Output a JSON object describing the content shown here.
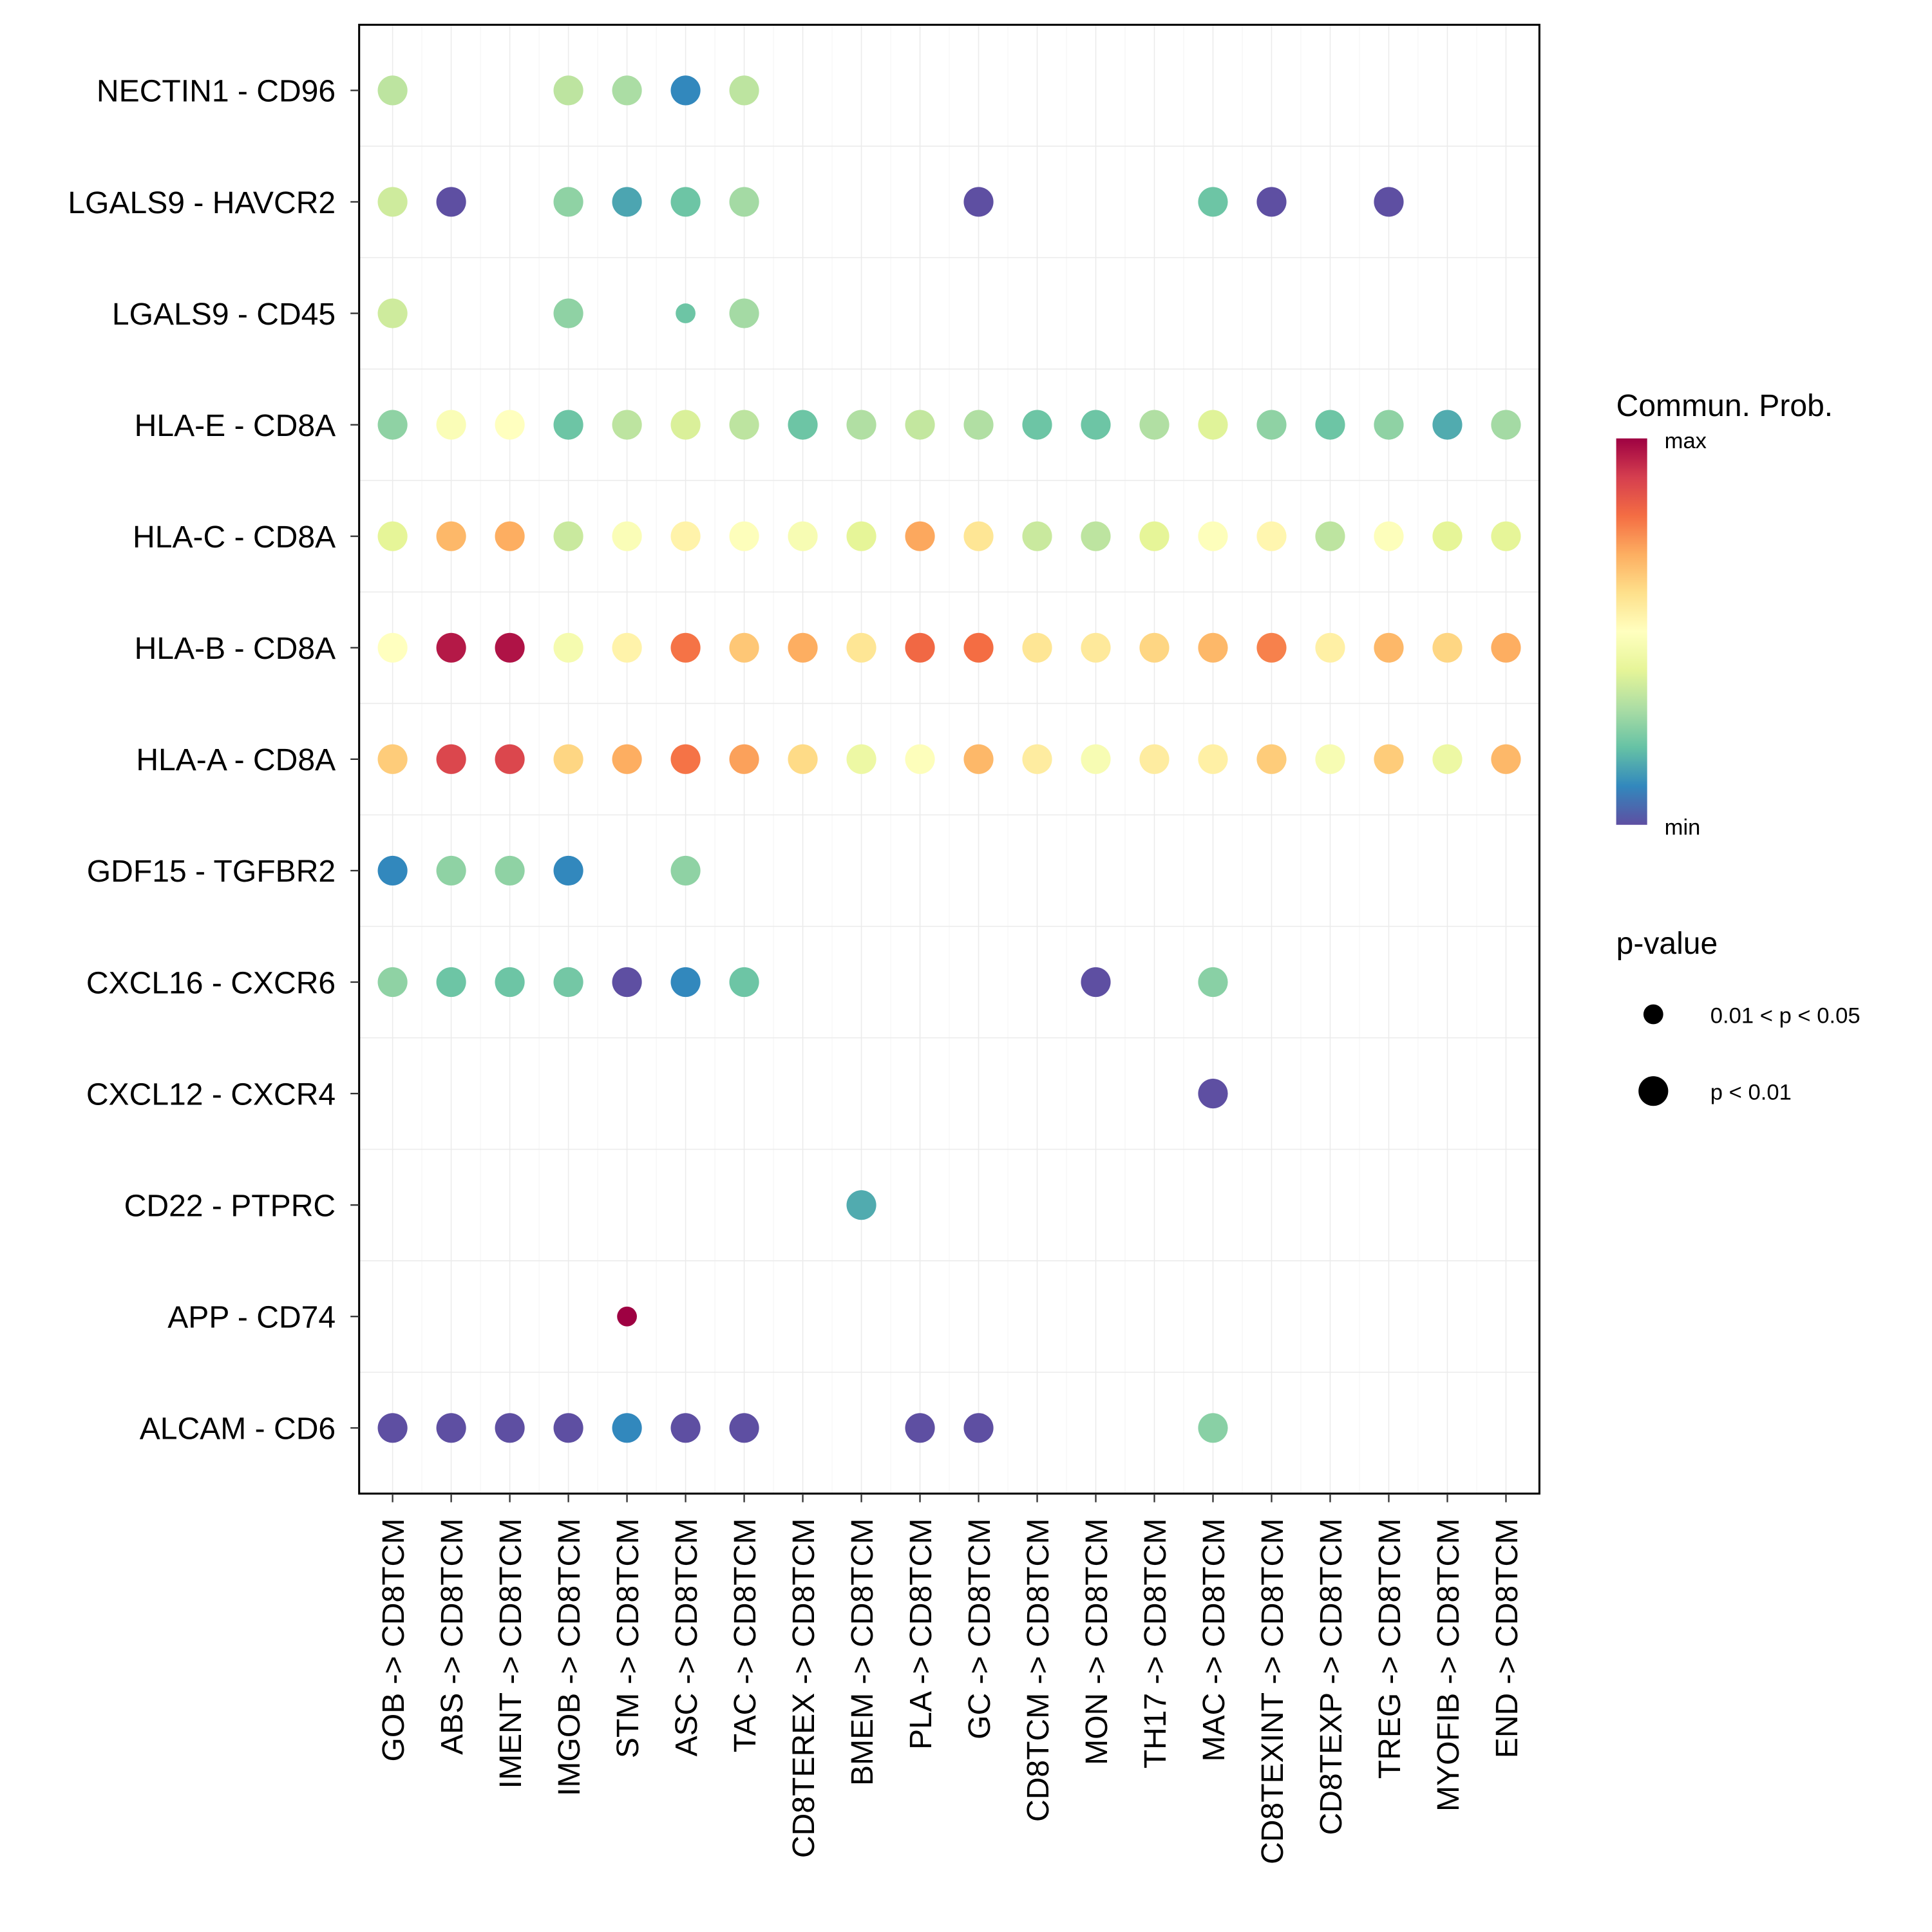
{
  "chart_data": {
    "type": "scatter",
    "subtype": "dot-plot",
    "title": "",
    "xlabel": "",
    "ylabel": "",
    "x_categories": [
      "GOB -> CD8TCM",
      "ABS -> CD8TCM",
      "IMENT -> CD8TCM",
      "IMGOB -> CD8TCM",
      "STM -> CD8TCM",
      "ASC -> CD8TCM",
      "TAC -> CD8TCM",
      "CD8TEREX -> CD8TCM",
      "BMEM -> CD8TCM",
      "PLA -> CD8TCM",
      "GC -> CD8TCM",
      "CD8TCM -> CD8TCM",
      "MON -> CD8TCM",
      "TH17 -> CD8TCM",
      "MAC -> CD8TCM",
      "CD8TEXINT -> CD8TCM",
      "CD8TEXP -> CD8TCM",
      "TREG -> CD8TCM",
      "MYOFIB -> CD8TCM",
      "END -> CD8TCM"
    ],
    "y_categories": [
      "NECTIN1 - CD96",
      "LGALS9 - HAVCR2",
      "LGALS9 - CD45",
      "HLA-E - CD8A",
      "HLA-C - CD8A",
      "HLA-B - CD8A",
      "HLA-A - CD8A",
      "GDF15 - TGFBR2",
      "CXCL16 - CXCR6",
      "CXCL12 - CXCR4",
      "CD22 - PTPRC",
      "APP - CD74",
      "ALCAM - CD6"
    ],
    "color_legend": {
      "title": "Commun. Prob.",
      "high_label": "max",
      "low_label": "min",
      "palette": [
        "#9E0142",
        "#D53E4F",
        "#F46D43",
        "#FDAE61",
        "#FEE08B",
        "#FFFFBF",
        "#E6F598",
        "#ABDDA4",
        "#66C2A5",
        "#3288BD",
        "#5E4FA2"
      ]
    },
    "size_legend": {
      "title": "p-value",
      "entries": [
        {
          "label": "0.01 < p < 0.05",
          "size": "small"
        },
        {
          "label": "p < 0.01",
          "size": "large"
        }
      ]
    },
    "value_scale": "normalized communication probability, 0 = min, 1 = max (estimated from color)",
    "points": [
      {
        "y": "NECTIN1 - CD96",
        "x": "GOB -> CD8TCM",
        "prob": 0.33,
        "p": "<0.01"
      },
      {
        "y": "NECTIN1 - CD96",
        "x": "IMGOB -> CD8TCM",
        "prob": 0.33,
        "p": "<0.01"
      },
      {
        "y": "NECTIN1 - CD96",
        "x": "STM -> CD8TCM",
        "prob": 0.3,
        "p": "<0.01"
      },
      {
        "y": "NECTIN1 - CD96",
        "x": "ASC -> CD8TCM",
        "prob": 0.1,
        "p": "<0.01"
      },
      {
        "y": "NECTIN1 - CD96",
        "x": "TAC -> CD8TCM",
        "prob": 0.33,
        "p": "<0.01"
      },
      {
        "y": "LGALS9 - HAVCR2",
        "x": "GOB -> CD8TCM",
        "prob": 0.36,
        "p": "<0.01"
      },
      {
        "y": "LGALS9 - HAVCR2",
        "x": "ABS -> CD8TCM",
        "prob": 0.0,
        "p": "<0.01"
      },
      {
        "y": "LGALS9 - HAVCR2",
        "x": "IMGOB -> CD8TCM",
        "prob": 0.26,
        "p": "<0.01"
      },
      {
        "y": "LGALS9 - HAVCR2",
        "x": "STM -> CD8TCM",
        "prob": 0.15,
        "p": "<0.01"
      },
      {
        "y": "LGALS9 - HAVCR2",
        "x": "ASC -> CD8TCM",
        "prob": 0.21,
        "p": "<0.01"
      },
      {
        "y": "LGALS9 - HAVCR2",
        "x": "TAC -> CD8TCM",
        "prob": 0.29,
        "p": "<0.01"
      },
      {
        "y": "LGALS9 - HAVCR2",
        "x": "GC -> CD8TCM",
        "prob": 0.0,
        "p": "<0.01"
      },
      {
        "y": "LGALS9 - HAVCR2",
        "x": "MAC -> CD8TCM",
        "prob": 0.21,
        "p": "<0.01"
      },
      {
        "y": "LGALS9 - HAVCR2",
        "x": "CD8TEXINT -> CD8TCM",
        "prob": 0.0,
        "p": "<0.01"
      },
      {
        "y": "LGALS9 - HAVCR2",
        "x": "TREG -> CD8TCM",
        "prob": 0.0,
        "p": "<0.01"
      },
      {
        "y": "LGALS9 - CD45",
        "x": "GOB -> CD8TCM",
        "prob": 0.36,
        "p": "<0.01"
      },
      {
        "y": "LGALS9 - CD45",
        "x": "IMGOB -> CD8TCM",
        "prob": 0.26,
        "p": "<0.01"
      },
      {
        "y": "LGALS9 - CD45",
        "x": "ASC -> CD8TCM",
        "prob": 0.21,
        "p": "0.01-0.05"
      },
      {
        "y": "LGALS9 - CD45",
        "x": "TAC -> CD8TCM",
        "prob": 0.29,
        "p": "<0.01"
      },
      {
        "y": "HLA-E - CD8A",
        "x": "GOB -> CD8TCM",
        "prob": 0.26,
        "p": "<0.01"
      },
      {
        "y": "HLA-E - CD8A",
        "x": "ABS -> CD8TCM",
        "prob": 0.48,
        "p": "<0.01"
      },
      {
        "y": "HLA-E - CD8A",
        "x": "IMENT -> CD8TCM",
        "prob": 0.5,
        "p": "<0.01"
      },
      {
        "y": "HLA-E - CD8A",
        "x": "IMGOB -> CD8TCM",
        "prob": 0.21,
        "p": "<0.01"
      },
      {
        "y": "HLA-E - CD8A",
        "x": "STM -> CD8TCM",
        "prob": 0.33,
        "p": "<0.01"
      },
      {
        "y": "HLA-E - CD8A",
        "x": "ASC -> CD8TCM",
        "prob": 0.38,
        "p": "<0.01"
      },
      {
        "y": "HLA-E - CD8A",
        "x": "TAC -> CD8TCM",
        "prob": 0.33,
        "p": "<0.01"
      },
      {
        "y": "HLA-E - CD8A",
        "x": "CD8TEREX -> CD8TCM",
        "prob": 0.21,
        "p": "<0.01"
      },
      {
        "y": "HLA-E - CD8A",
        "x": "BMEM -> CD8TCM",
        "prob": 0.31,
        "p": "<0.01"
      },
      {
        "y": "HLA-E - CD8A",
        "x": "PLA -> CD8TCM",
        "prob": 0.34,
        "p": "<0.01"
      },
      {
        "y": "HLA-E - CD8A",
        "x": "GC -> CD8TCM",
        "prob": 0.31,
        "p": "<0.01"
      },
      {
        "y": "HLA-E - CD8A",
        "x": "CD8TCM -> CD8TCM",
        "prob": 0.21,
        "p": "<0.01"
      },
      {
        "y": "HLA-E - CD8A",
        "x": "MON -> CD8TCM",
        "prob": 0.21,
        "p": "<0.01"
      },
      {
        "y": "HLA-E - CD8A",
        "x": "TH17 -> CD8TCM",
        "prob": 0.31,
        "p": "<0.01"
      },
      {
        "y": "HLA-E - CD8A",
        "x": "MAC -> CD8TCM",
        "prob": 0.39,
        "p": "<0.01"
      },
      {
        "y": "HLA-E - CD8A",
        "x": "CD8TEXINT -> CD8TCM",
        "prob": 0.26,
        "p": "<0.01"
      },
      {
        "y": "HLA-E - CD8A",
        "x": "CD8TEXP -> CD8TCM",
        "prob": 0.21,
        "p": "<0.01"
      },
      {
        "y": "HLA-E - CD8A",
        "x": "TREG -> CD8TCM",
        "prob": 0.26,
        "p": "<0.01"
      },
      {
        "y": "HLA-E - CD8A",
        "x": "MYOFIB -> CD8TCM",
        "prob": 0.16,
        "p": "<0.01"
      },
      {
        "y": "HLA-E - CD8A",
        "x": "END -> CD8TCM",
        "prob": 0.29,
        "p": "<0.01"
      },
      {
        "y": "HLA-C - CD8A",
        "x": "GOB -> CD8TCM",
        "prob": 0.4,
        "p": "<0.01"
      },
      {
        "y": "HLA-C - CD8A",
        "x": "ABS -> CD8TCM",
        "prob": 0.68,
        "p": "<0.01"
      },
      {
        "y": "HLA-C - CD8A",
        "x": "IMENT -> CD8TCM",
        "prob": 0.7,
        "p": "<0.01"
      },
      {
        "y": "HLA-C - CD8A",
        "x": "IMGOB -> CD8TCM",
        "prob": 0.35,
        "p": "<0.01"
      },
      {
        "y": "HLA-C - CD8A",
        "x": "STM -> CD8TCM",
        "prob": 0.48,
        "p": "<0.01"
      },
      {
        "y": "HLA-C - CD8A",
        "x": "ASC -> CD8TCM",
        "prob": 0.54,
        "p": "<0.01"
      },
      {
        "y": "HLA-C - CD8A",
        "x": "TAC -> CD8TCM",
        "prob": 0.49,
        "p": "<0.01"
      },
      {
        "y": "HLA-C - CD8A",
        "x": "CD8TEREX -> CD8TCM",
        "prob": 0.47,
        "p": "<0.01"
      },
      {
        "y": "HLA-C - CD8A",
        "x": "BMEM -> CD8TCM",
        "prob": 0.4,
        "p": "<0.01"
      },
      {
        "y": "HLA-C - CD8A",
        "x": "PLA -> CD8TCM",
        "prob": 0.71,
        "p": "<0.01"
      },
      {
        "y": "HLA-C - CD8A",
        "x": "GC -> CD8TCM",
        "prob": 0.58,
        "p": "<0.01"
      },
      {
        "y": "HLA-C - CD8A",
        "x": "CD8TCM -> CD8TCM",
        "prob": 0.35,
        "p": "<0.01"
      },
      {
        "y": "HLA-C - CD8A",
        "x": "MON -> CD8TCM",
        "prob": 0.33,
        "p": "<0.01"
      },
      {
        "y": "HLA-C - CD8A",
        "x": "TH17 -> CD8TCM",
        "prob": 0.4,
        "p": "<0.01"
      },
      {
        "y": "HLA-C - CD8A",
        "x": "MAC -> CD8TCM",
        "prob": 0.49,
        "p": "<0.01"
      },
      {
        "y": "HLA-C - CD8A",
        "x": "CD8TEXINT -> CD8TCM",
        "prob": 0.53,
        "p": "<0.01"
      },
      {
        "y": "HLA-C - CD8A",
        "x": "CD8TEXP -> CD8TCM",
        "prob": 0.33,
        "p": "<0.01"
      },
      {
        "y": "HLA-C - CD8A",
        "x": "TREG -> CD8TCM",
        "prob": 0.49,
        "p": "<0.01"
      },
      {
        "y": "HLA-C - CD8A",
        "x": "MYOFIB -> CD8TCM",
        "prob": 0.4,
        "p": "<0.01"
      },
      {
        "y": "HLA-C - CD8A",
        "x": "END -> CD8TCM",
        "prob": 0.4,
        "p": "<0.01"
      },
      {
        "y": "HLA-B - CD8A",
        "x": "GOB -> CD8TCM",
        "prob": 0.5,
        "p": "<0.01"
      },
      {
        "y": "HLA-B - CD8A",
        "x": "ABS -> CD8TCM",
        "prob": 0.96,
        "p": "<0.01"
      },
      {
        "y": "HLA-B - CD8A",
        "x": "IMENT -> CD8TCM",
        "prob": 0.97,
        "p": "<0.01"
      },
      {
        "y": "HLA-B - CD8A",
        "x": "IMGOB -> CD8TCM",
        "prob": 0.46,
        "p": "<0.01"
      },
      {
        "y": "HLA-B - CD8A",
        "x": "STM -> CD8TCM",
        "prob": 0.54,
        "p": "<0.01"
      },
      {
        "y": "HLA-B - CD8A",
        "x": "ASC -> CD8TCM",
        "prob": 0.79,
        "p": "<0.01"
      },
      {
        "y": "HLA-B - CD8A",
        "x": "TAC -> CD8TCM",
        "prob": 0.65,
        "p": "<0.01"
      },
      {
        "y": "HLA-B - CD8A",
        "x": "CD8TEREX -> CD8TCM",
        "prob": 0.7,
        "p": "<0.01"
      },
      {
        "y": "HLA-B - CD8A",
        "x": "BMEM -> CD8TCM",
        "prob": 0.58,
        "p": "<0.01"
      },
      {
        "y": "HLA-B - CD8A",
        "x": "PLA -> CD8TCM",
        "prob": 0.81,
        "p": "<0.01"
      },
      {
        "y": "HLA-B - CD8A",
        "x": "GC -> CD8TCM",
        "prob": 0.8,
        "p": "<0.01"
      },
      {
        "y": "HLA-B - CD8A",
        "x": "CD8TCM -> CD8TCM",
        "prob": 0.58,
        "p": "<0.01"
      },
      {
        "y": "HLA-B - CD8A",
        "x": "MON -> CD8TCM",
        "prob": 0.57,
        "p": "<0.01"
      },
      {
        "y": "HLA-B - CD8A",
        "x": "TH17 -> CD8TCM",
        "prob": 0.62,
        "p": "<0.01"
      },
      {
        "y": "HLA-B - CD8A",
        "x": "MAC -> CD8TCM",
        "prob": 0.68,
        "p": "<0.01"
      },
      {
        "y": "HLA-B - CD8A",
        "x": "CD8TEXINT -> CD8TCM",
        "prob": 0.77,
        "p": "<0.01"
      },
      {
        "y": "HLA-B - CD8A",
        "x": "CD8TEXP -> CD8TCM",
        "prob": 0.55,
        "p": "<0.01"
      },
      {
        "y": "HLA-B - CD8A",
        "x": "TREG -> CD8TCM",
        "prob": 0.68,
        "p": "<0.01"
      },
      {
        "y": "HLA-B - CD8A",
        "x": "MYOFIB -> CD8TCM",
        "prob": 0.62,
        "p": "<0.01"
      },
      {
        "y": "HLA-B - CD8A",
        "x": "END -> CD8TCM",
        "prob": 0.7,
        "p": "<0.01"
      },
      {
        "y": "HLA-A - CD8A",
        "x": "GOB -> CD8TCM",
        "prob": 0.64,
        "p": "<0.01"
      },
      {
        "y": "HLA-A - CD8A",
        "x": "ABS -> CD8TCM",
        "prob": 0.88,
        "p": "<0.01"
      },
      {
        "y": "HLA-A - CD8A",
        "x": "IMENT -> CD8TCM",
        "prob": 0.88,
        "p": "<0.01"
      },
      {
        "y": "HLA-A - CD8A",
        "x": "IMGOB -> CD8TCM",
        "prob": 0.62,
        "p": "<0.01"
      },
      {
        "y": "HLA-A - CD8A",
        "x": "STM -> CD8TCM",
        "prob": 0.7,
        "p": "<0.01"
      },
      {
        "y": "HLA-A - CD8A",
        "x": "ASC -> CD8TCM",
        "prob": 0.79,
        "p": "<0.01"
      },
      {
        "y": "HLA-A - CD8A",
        "x": "TAC -> CD8TCM",
        "prob": 0.72,
        "p": "<0.01"
      },
      {
        "y": "HLA-A - CD8A",
        "x": "CD8TEREX -> CD8TCM",
        "prob": 0.61,
        "p": "<0.01"
      },
      {
        "y": "HLA-A - CD8A",
        "x": "BMEM -> CD8TCM",
        "prob": 0.43,
        "p": "<0.01"
      },
      {
        "y": "HLA-A - CD8A",
        "x": "PLA -> CD8TCM",
        "prob": 0.49,
        "p": "<0.01"
      },
      {
        "y": "HLA-A - CD8A",
        "x": "GC -> CD8TCM",
        "prob": 0.68,
        "p": "<0.01"
      },
      {
        "y": "HLA-A - CD8A",
        "x": "CD8TCM -> CD8TCM",
        "prob": 0.56,
        "p": "<0.01"
      },
      {
        "y": "HLA-A - CD8A",
        "x": "MON -> CD8TCM",
        "prob": 0.47,
        "p": "<0.01"
      },
      {
        "y": "HLA-A - CD8A",
        "x": "TH17 -> CD8TCM",
        "prob": 0.56,
        "p": "<0.01"
      },
      {
        "y": "HLA-A - CD8A",
        "x": "MAC -> CD8TCM",
        "prob": 0.55,
        "p": "<0.01"
      },
      {
        "y": "HLA-A - CD8A",
        "x": "CD8TEXINT -> CD8TCM",
        "prob": 0.64,
        "p": "<0.01"
      },
      {
        "y": "HLA-A - CD8A",
        "x": "CD8TEXP -> CD8TCM",
        "prob": 0.47,
        "p": "<0.01"
      },
      {
        "y": "HLA-A - CD8A",
        "x": "TREG -> CD8TCM",
        "prob": 0.64,
        "p": "<0.01"
      },
      {
        "y": "HLA-A - CD8A",
        "x": "MYOFIB -> CD8TCM",
        "prob": 0.43,
        "p": "<0.01"
      },
      {
        "y": "HLA-A - CD8A",
        "x": "END -> CD8TCM",
        "prob": 0.68,
        "p": "<0.01"
      },
      {
        "y": "GDF15 - TGFBR2",
        "x": "GOB -> CD8TCM",
        "prob": 0.1,
        "p": "<0.01"
      },
      {
        "y": "GDF15 - TGFBR2",
        "x": "ABS -> CD8TCM",
        "prob": 0.26,
        "p": "<0.01"
      },
      {
        "y": "GDF15 - TGFBR2",
        "x": "IMENT -> CD8TCM",
        "prob": 0.26,
        "p": "<0.01"
      },
      {
        "y": "GDF15 - TGFBR2",
        "x": "IMGOB -> CD8TCM",
        "prob": 0.1,
        "p": "<0.01"
      },
      {
        "y": "GDF15 - TGFBR2",
        "x": "ASC -> CD8TCM",
        "prob": 0.26,
        "p": "<0.01"
      },
      {
        "y": "CXCL16 - CXCR6",
        "x": "GOB -> CD8TCM",
        "prob": 0.26,
        "p": "<0.01"
      },
      {
        "y": "CXCL16 - CXCR6",
        "x": "ABS -> CD8TCM",
        "prob": 0.21,
        "p": "<0.01"
      },
      {
        "y": "CXCL16 - CXCR6",
        "x": "IMENT -> CD8TCM",
        "prob": 0.21,
        "p": "<0.01"
      },
      {
        "y": "CXCL16 - CXCR6",
        "x": "IMGOB -> CD8TCM",
        "prob": 0.22,
        "p": "<0.01"
      },
      {
        "y": "CXCL16 - CXCR6",
        "x": "STM -> CD8TCM",
        "prob": 0.0,
        "p": "<0.01"
      },
      {
        "y": "CXCL16 - CXCR6",
        "x": "ASC -> CD8TCM",
        "prob": 0.1,
        "p": "<0.01"
      },
      {
        "y": "CXCL16 - CXCR6",
        "x": "TAC -> CD8TCM",
        "prob": 0.21,
        "p": "<0.01"
      },
      {
        "y": "CXCL16 - CXCR6",
        "x": "MON -> CD8TCM",
        "prob": 0.0,
        "p": "<0.01"
      },
      {
        "y": "CXCL16 - CXCR6",
        "x": "MAC -> CD8TCM",
        "prob": 0.25,
        "p": "<0.01"
      },
      {
        "y": "CXCL12 - CXCR4",
        "x": "MAC -> CD8TCM",
        "prob": 0.0,
        "p": "<0.01"
      },
      {
        "y": "CD22 - PTPRC",
        "x": "BMEM -> CD8TCM",
        "prob": 0.16,
        "p": "<0.01"
      },
      {
        "y": "APP - CD74",
        "x": "STM -> CD8TCM",
        "prob": 1.0,
        "p": "0.01-0.05"
      },
      {
        "y": "ALCAM - CD6",
        "x": "GOB -> CD8TCM",
        "prob": 0.0,
        "p": "<0.01"
      },
      {
        "y": "ALCAM - CD6",
        "x": "ABS -> CD8TCM",
        "prob": 0.0,
        "p": "<0.01"
      },
      {
        "y": "ALCAM - CD6",
        "x": "IMENT -> CD8TCM",
        "prob": 0.0,
        "p": "<0.01"
      },
      {
        "y": "ALCAM - CD6",
        "x": "IMGOB -> CD8TCM",
        "prob": 0.0,
        "p": "<0.01"
      },
      {
        "y": "ALCAM - CD6",
        "x": "STM -> CD8TCM",
        "prob": 0.1,
        "p": "<0.01"
      },
      {
        "y": "ALCAM - CD6",
        "x": "ASC -> CD8TCM",
        "prob": 0.0,
        "p": "<0.01"
      },
      {
        "y": "ALCAM - CD6",
        "x": "TAC -> CD8TCM",
        "prob": 0.0,
        "p": "<0.01"
      },
      {
        "y": "ALCAM - CD6",
        "x": "PLA -> CD8TCM",
        "prob": 0.0,
        "p": "<0.01"
      },
      {
        "y": "ALCAM - CD6",
        "x": "GC -> CD8TCM",
        "prob": 0.0,
        "p": "<0.01"
      },
      {
        "y": "ALCAM - CD6",
        "x": "MAC -> CD8TCM",
        "prob": 0.25,
        "p": "<0.01"
      }
    ],
    "grid": true,
    "legend_position": "right"
  }
}
